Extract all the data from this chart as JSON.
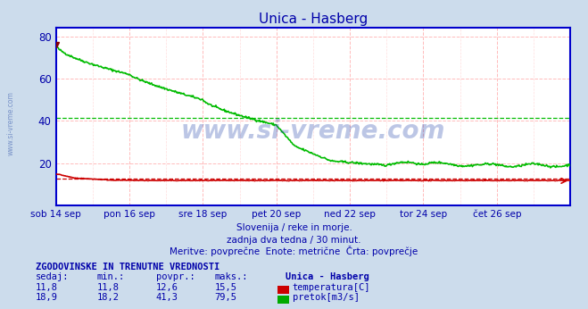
{
  "title": "Unica - Hasberg",
  "title_color": "#0000aa",
  "bg_color": "#ccdcec",
  "plot_bg_color": "#ffffff",
  "xlim": [
    0,
    672
  ],
  "ylim": [
    0,
    84
  ],
  "yticks": [
    20,
    40,
    60,
    80
  ],
  "xtick_labels": [
    "sob 14 sep",
    "pon 16 sep",
    "sre 18 sep",
    "pet 20 sep",
    "ned 22 sep",
    "tor 24 sep",
    "čet 26 sep"
  ],
  "xtick_positions": [
    0,
    96,
    192,
    288,
    384,
    480,
    576
  ],
  "avg_pretok": 41.3,
  "avg_temp": 12.6,
  "watermark": "www.si-vreme.com",
  "sub_text1": "Slovenija / reke in morje.",
  "sub_text2": "zadnja dva tedna / 30 minut.",
  "sub_text3": "Meritve: povprečne  Enote: metrične  Črta: povprečje",
  "sub_color": "#0000aa",
  "ylabel_text": "www.si-vreme.com",
  "stats_header": "ZGODOVINSKE IN TRENUTNE VREDNOSTI",
  "stats_cols": [
    "sedaj:",
    "min.:",
    "povpr.:",
    "maks.:"
  ],
  "stats_temp": [
    "11,8",
    "11,8",
    "12,6",
    "15,5"
  ],
  "stats_pretok": [
    "18,9",
    "18,2",
    "41,3",
    "79,5"
  ],
  "legend_label_temp": "temperatura[C]",
  "legend_label_pretok": "pretok[m3/s]",
  "legend_color_temp": "#cc0000",
  "legend_color_pretok": "#00aa00",
  "pretok_color": "#00bb00",
  "temp_color": "#cc0000",
  "spine_color": "#0000cc",
  "n_points": 673
}
